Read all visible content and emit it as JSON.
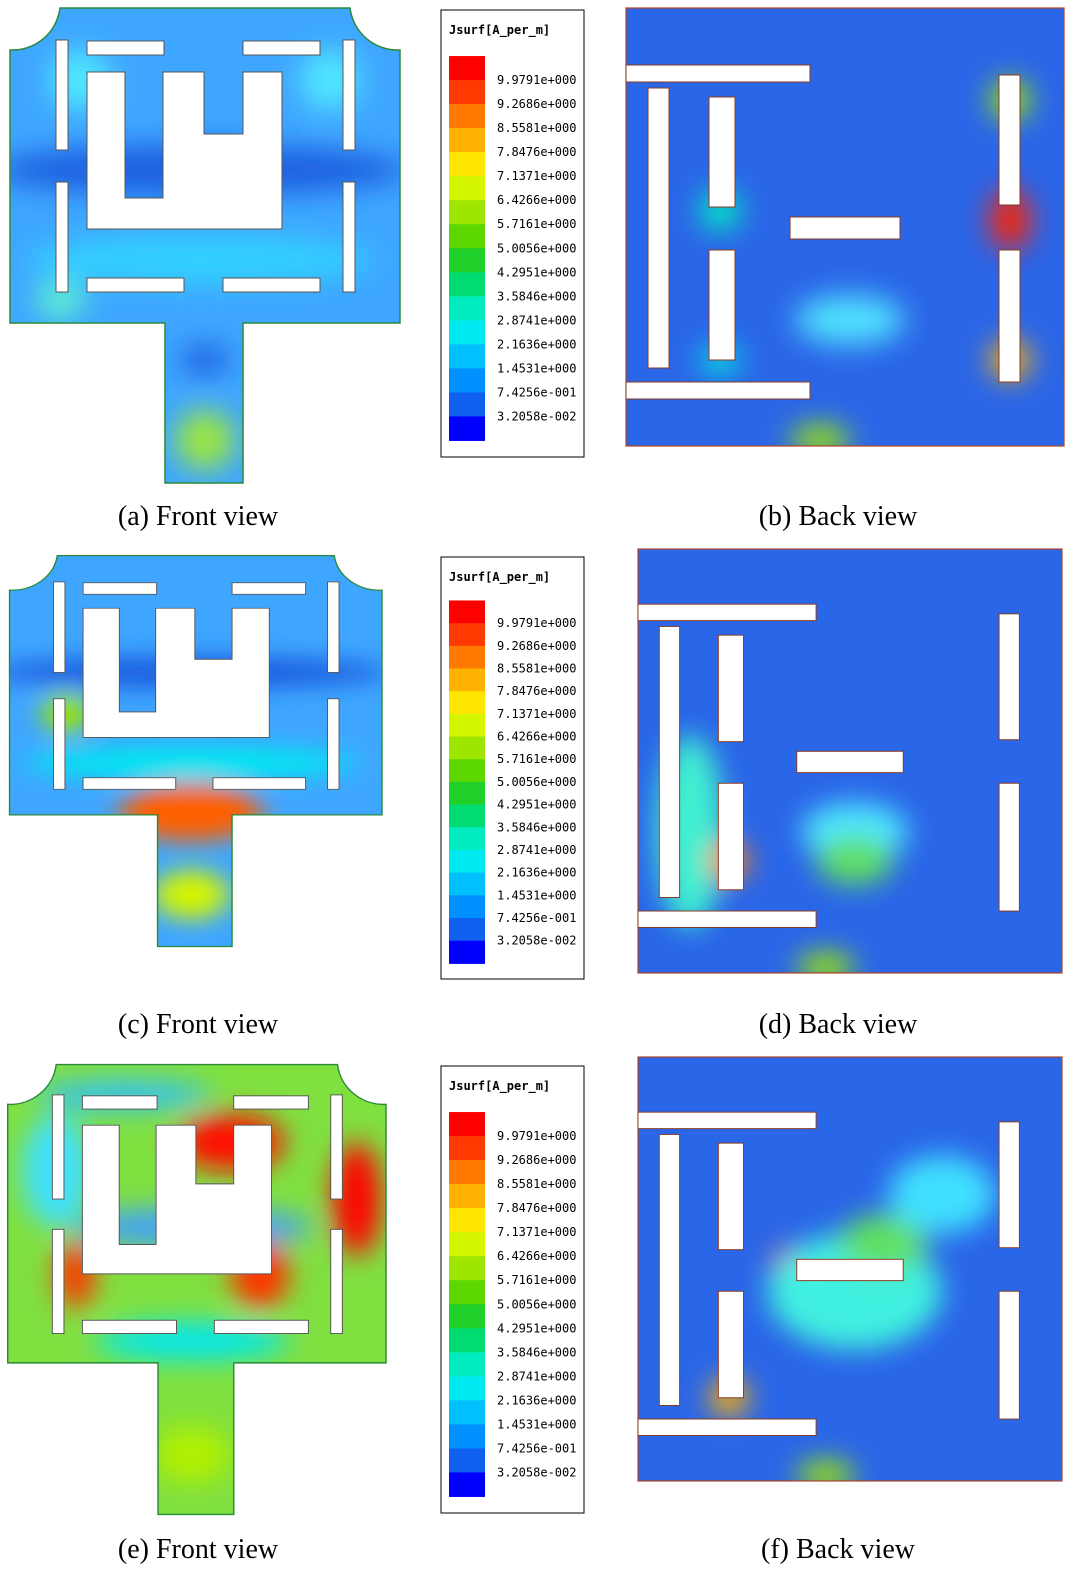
{
  "rows": [
    {
      "front_caption": "(a) Front view",
      "back_caption": "(b) Back view",
      "legend": {
        "title": "Jsurf[A_per_m]",
        "labels": [
          "9.9791e+000",
          "9.2686e+000",
          "8.5581e+000",
          "7.8476e+000",
          "7.1371e+000",
          "6.4266e+000",
          "5.7161e+000",
          "5.0056e+000",
          "4.2951e+000",
          "3.5846e+000",
          "2.8741e+000",
          "2.1636e+000",
          "1.4531e+000",
          "7.4256e-001",
          "3.2058e-002"
        ]
      }
    },
    {
      "front_caption": "(c) Front view",
      "back_caption": "(d) Back view",
      "legend": {
        "title": "Jsurf[A_per_m]",
        "labels": [
          "9.9791e+000",
          "9.2686e+000",
          "8.5581e+000",
          "7.8476e+000",
          "7.1371e+000",
          "6.4266e+000",
          "5.7161e+000",
          "5.0056e+000",
          "4.2951e+000",
          "3.5846e+000",
          "2.8741e+000",
          "2.1636e+000",
          "1.4531e+000",
          "7.4256e-001",
          "3.2058e-002"
        ]
      }
    },
    {
      "front_caption": "(e) Front view",
      "back_caption": "(f) Back view",
      "legend": {
        "title": "Jsurf[A_per_m]",
        "labels": [
          "9.9791e+000",
          "9.2686e+000",
          "8.5581e+000",
          "7.8476e+000",
          "7.1371e+000",
          "6.4266e+000",
          "5.7161e+000",
          "5.0056e+000",
          "4.2951e+000",
          "3.5846e+000",
          "2.8741e+000",
          "2.1636e+000",
          "1.4531e+000",
          "7.4256e-001",
          "3.2058e-002"
        ]
      }
    }
  ]
}
